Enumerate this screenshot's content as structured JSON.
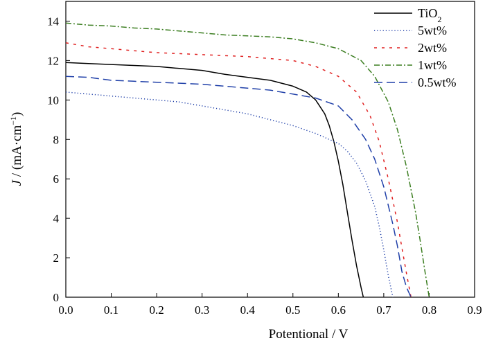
{
  "chart_data": {
    "type": "line",
    "title": "",
    "xlabel": "Potentional / V",
    "ylabel_main": "J",
    "ylabel_rest": " / (mA·cm",
    "ylabel_sup": "−1",
    "ylabel_close": ")",
    "xlim": [
      0,
      0.9
    ],
    "ylim": [
      0,
      15
    ],
    "xticks": [
      "0.0",
      "0.1",
      "0.2",
      "0.3",
      "0.4",
      "0.5",
      "0.6",
      "0.7",
      "0.8",
      "0.9"
    ],
    "yticks": [
      "0",
      "2",
      "4",
      "6",
      "8",
      "10",
      "12",
      "14"
    ],
    "grid": false,
    "legend_position": "top-right",
    "series": [
      {
        "name": "TiO",
        "name_sub": "2",
        "color": "#000000",
        "dash": "solid",
        "x": [
          0.0,
          0.05,
          0.1,
          0.15,
          0.2,
          0.25,
          0.3,
          0.35,
          0.4,
          0.45,
          0.5,
          0.53,
          0.55,
          0.57,
          0.58,
          0.59,
          0.6,
          0.61,
          0.62,
          0.63,
          0.64,
          0.65,
          0.655
        ],
        "y": [
          11.9,
          11.85,
          11.8,
          11.75,
          11.7,
          11.6,
          11.5,
          11.3,
          11.15,
          11.0,
          10.7,
          10.4,
          10.0,
          9.3,
          8.7,
          7.9,
          6.9,
          5.7,
          4.3,
          2.9,
          1.6,
          0.5,
          0.0
        ]
      },
      {
        "name": "5wt%",
        "color": "#1f3fa8",
        "dash": "dotted",
        "x": [
          0.0,
          0.05,
          0.1,
          0.15,
          0.2,
          0.25,
          0.3,
          0.35,
          0.4,
          0.45,
          0.5,
          0.55,
          0.58,
          0.6,
          0.62,
          0.64,
          0.66,
          0.68,
          0.69,
          0.7,
          0.71,
          0.72
        ],
        "y": [
          10.4,
          10.3,
          10.2,
          10.1,
          10.0,
          9.9,
          9.7,
          9.5,
          9.3,
          9.0,
          8.7,
          8.3,
          8.0,
          7.8,
          7.4,
          6.8,
          5.9,
          4.6,
          3.6,
          2.4,
          1.1,
          0.0
        ]
      },
      {
        "name": "2wt%",
        "color": "#e02020",
        "dash": "dashed",
        "x": [
          0.0,
          0.05,
          0.1,
          0.15,
          0.2,
          0.25,
          0.3,
          0.35,
          0.4,
          0.45,
          0.5,
          0.55,
          0.6,
          0.64,
          0.67,
          0.69,
          0.71,
          0.73,
          0.74,
          0.75,
          0.76
        ],
        "y": [
          12.9,
          12.7,
          12.6,
          12.5,
          12.4,
          12.35,
          12.3,
          12.25,
          12.2,
          12.1,
          12.0,
          11.7,
          11.2,
          10.4,
          9.2,
          7.9,
          6.0,
          3.8,
          2.5,
          1.2,
          0.0
        ]
      },
      {
        "name": "1wt%",
        "color": "#3a7d1f",
        "dash": "dashdot",
        "x": [
          0.0,
          0.05,
          0.1,
          0.15,
          0.2,
          0.25,
          0.3,
          0.35,
          0.4,
          0.45,
          0.5,
          0.55,
          0.6,
          0.65,
          0.68,
          0.71,
          0.73,
          0.75,
          0.77,
          0.78,
          0.79,
          0.8
        ],
        "y": [
          13.9,
          13.8,
          13.75,
          13.65,
          13.6,
          13.5,
          13.4,
          13.3,
          13.25,
          13.2,
          13.1,
          12.9,
          12.6,
          12.0,
          11.2,
          9.9,
          8.5,
          6.6,
          4.3,
          2.9,
          1.4,
          0.0
        ]
      },
      {
        "name": "0.5wt%",
        "color": "#1f3fa8",
        "dash": "longdash",
        "x": [
          0.0,
          0.05,
          0.1,
          0.15,
          0.2,
          0.25,
          0.3,
          0.35,
          0.4,
          0.45,
          0.5,
          0.55,
          0.6,
          0.63,
          0.66,
          0.68,
          0.7,
          0.72,
          0.73,
          0.74,
          0.75,
          0.76
        ],
        "y": [
          11.2,
          11.15,
          11.0,
          10.95,
          10.9,
          10.85,
          10.8,
          10.7,
          10.6,
          10.5,
          10.3,
          10.1,
          9.7,
          9.0,
          8.0,
          7.0,
          5.6,
          3.7,
          2.6,
          1.3,
          0.5,
          0.0
        ]
      }
    ]
  }
}
